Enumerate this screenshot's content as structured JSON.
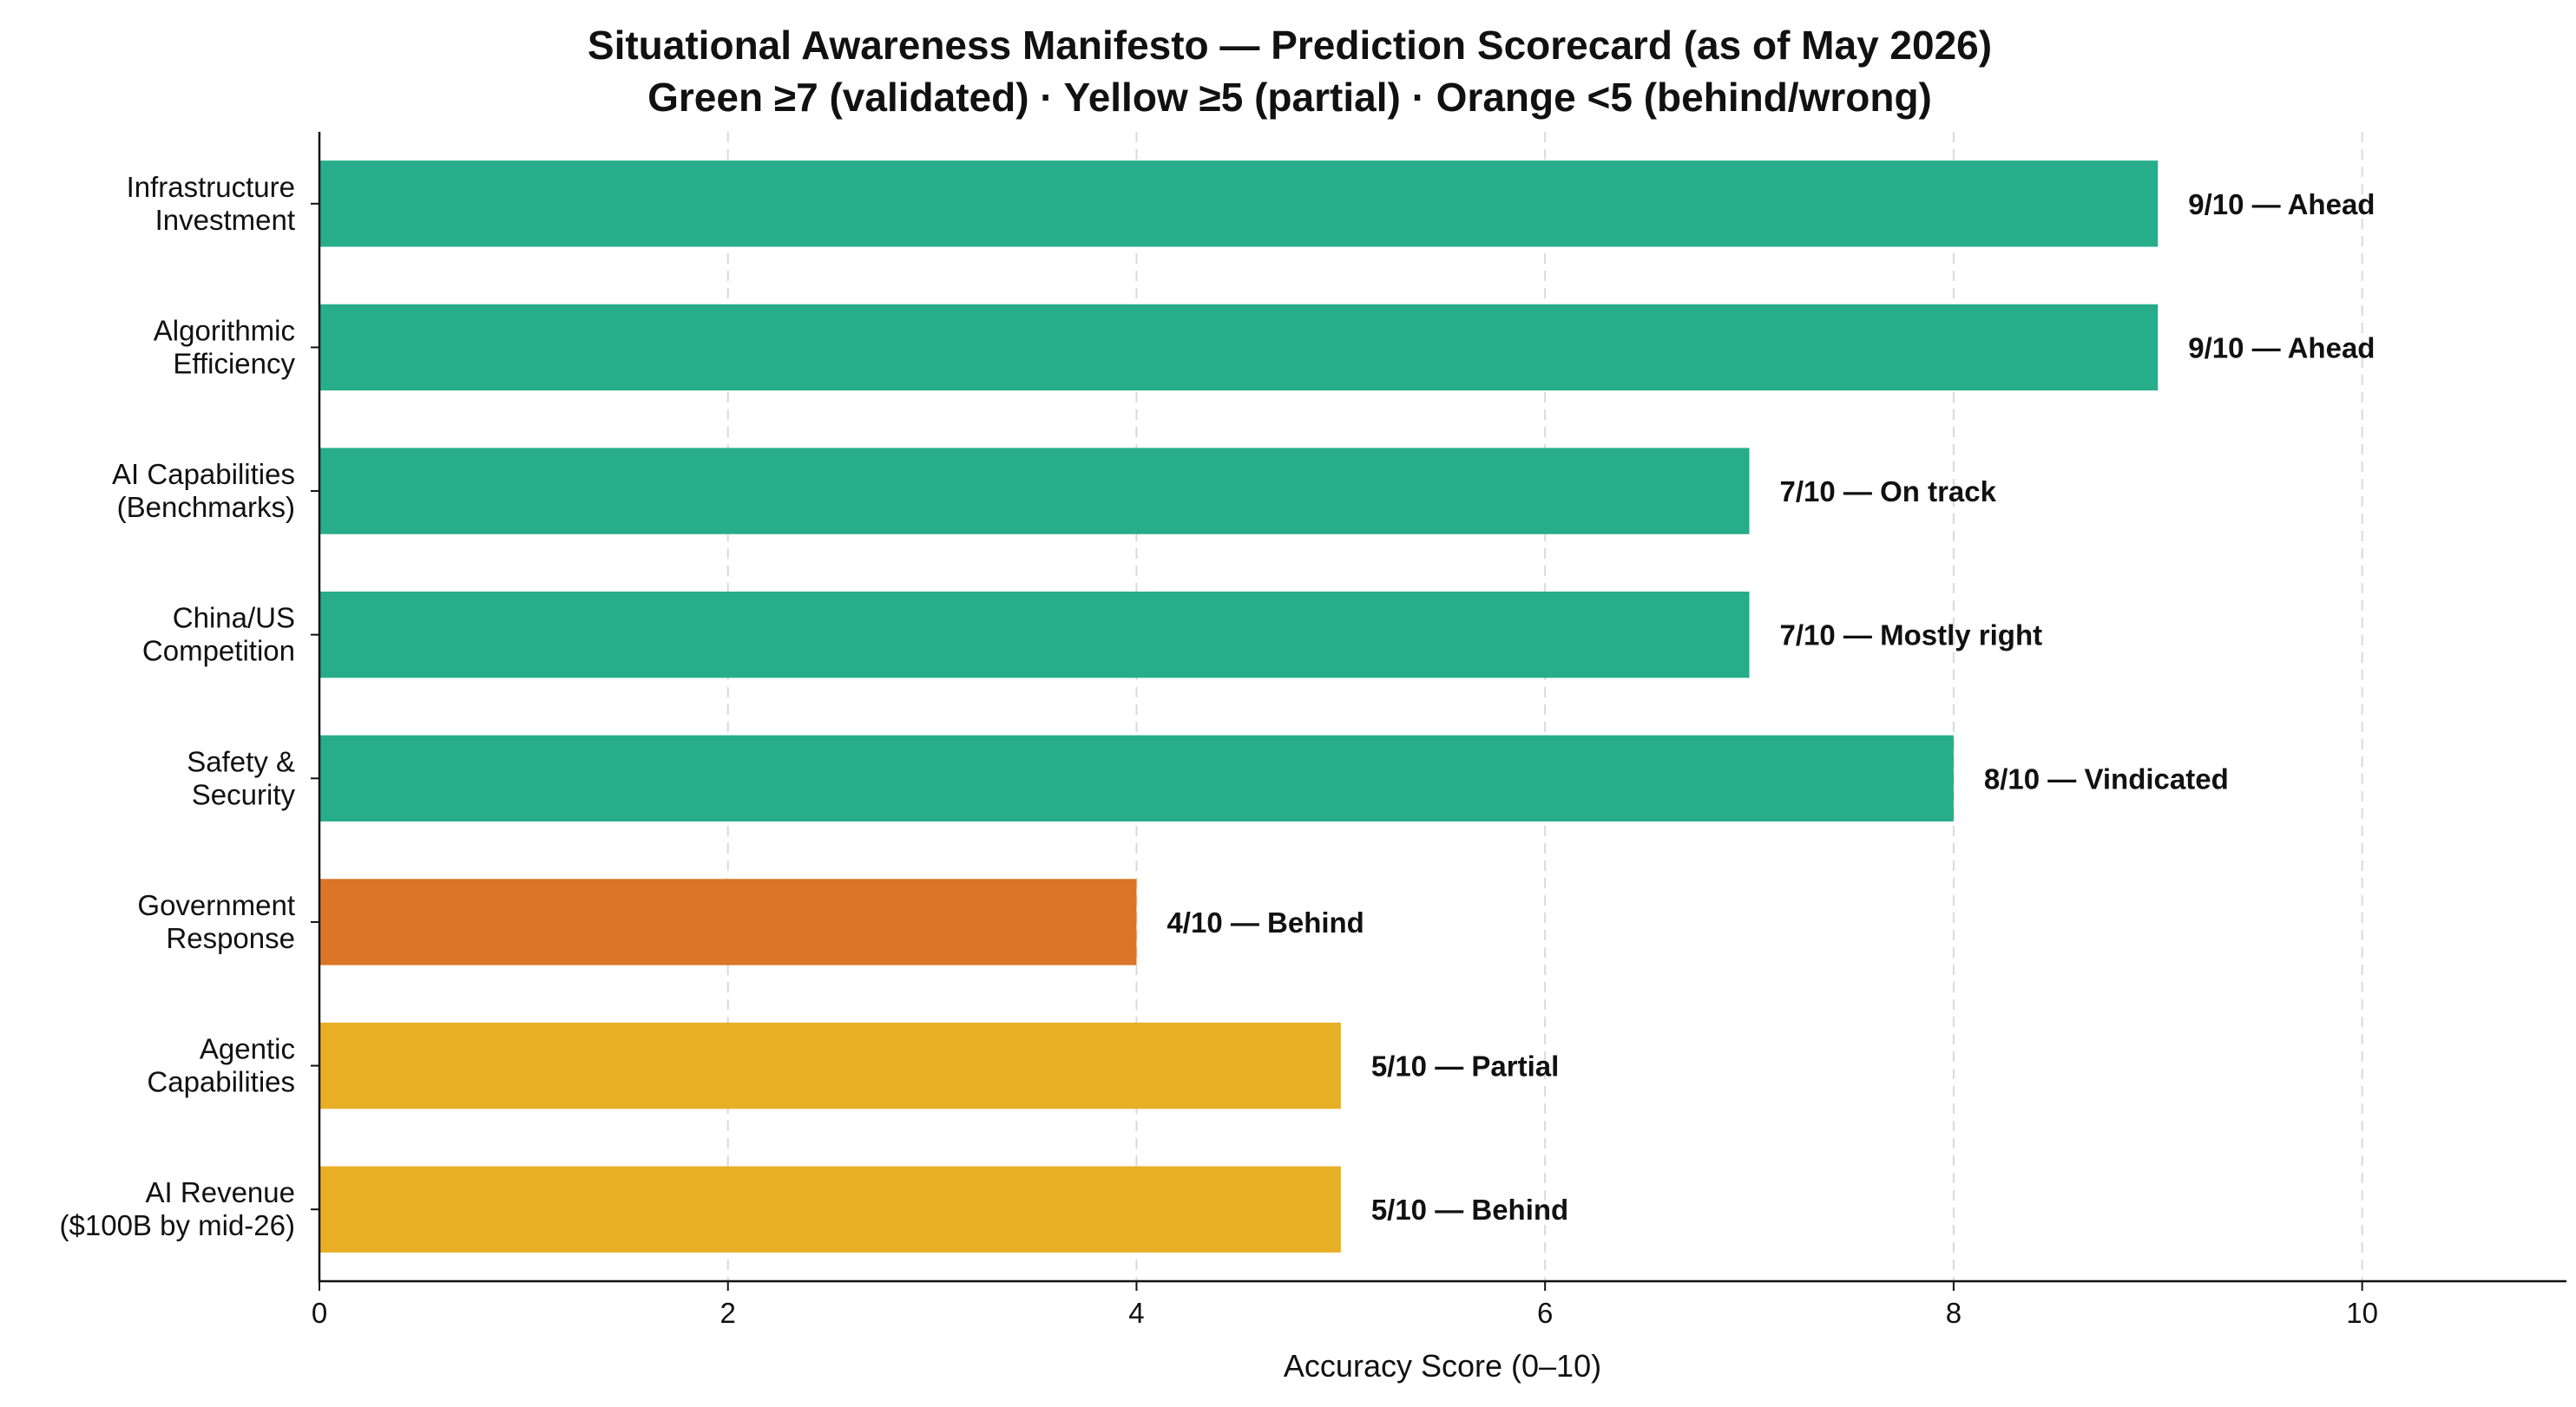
{
  "chart_data": {
    "type": "bar",
    "orientation": "horizontal",
    "title": [
      "Situational Awareness Manifesto — Prediction Scorecard (as of May 2026)",
      "Green ≥7 (validated) · Yellow ≥5 (partial) · Orange <5 (behind/wrong)"
    ],
    "xlabel": "Accuracy Score (0–10)",
    "ylabel": "",
    "xlim": [
      0,
      11
    ],
    "xticks": [
      0,
      2,
      4,
      6,
      8,
      10
    ],
    "grid": "x-dashed",
    "legend": "none",
    "colors": {
      "green": "#27AD8A",
      "yellow": "#E8AE26",
      "orange": "#DC7527"
    },
    "categories": [
      [
        "Infrastructure",
        "Investment"
      ],
      [
        "Algorithmic",
        "Efficiency"
      ],
      [
        "AI Capabilities",
        "(Benchmarks)"
      ],
      [
        "China/US",
        "Competition"
      ],
      [
        "Safety &",
        "Security"
      ],
      [
        "Government",
        "Response"
      ],
      [
        "Agentic",
        "Capabilities"
      ],
      [
        "AI Revenue",
        "($100B by mid-26)"
      ]
    ],
    "values": [
      9,
      9,
      7,
      7,
      8,
      4,
      5,
      5
    ],
    "bar_colors": [
      "green",
      "green",
      "green",
      "green",
      "green",
      "orange",
      "yellow",
      "yellow"
    ],
    "data_labels": [
      "9/10 — Ahead",
      "9/10 — Ahead",
      "7/10 — On track",
      "7/10 — Mostly right",
      "8/10 — Vindicated",
      "4/10 — Behind",
      "5/10 — Partial",
      "5/10 — Behind"
    ]
  }
}
